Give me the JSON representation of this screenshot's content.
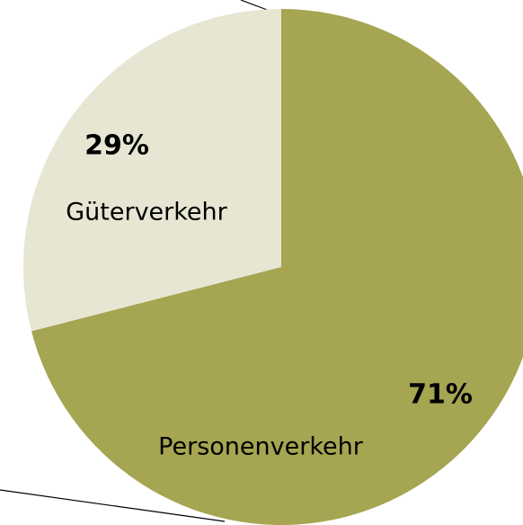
{
  "chart_data": {
    "type": "pie",
    "categories": [
      "Personenverkehr",
      "Güterverkehr"
    ],
    "values": [
      71,
      29
    ],
    "value_labels": [
      "71%",
      "29%"
    ],
    "colors": [
      "#a5a552",
      "#e6e6d3"
    ]
  }
}
